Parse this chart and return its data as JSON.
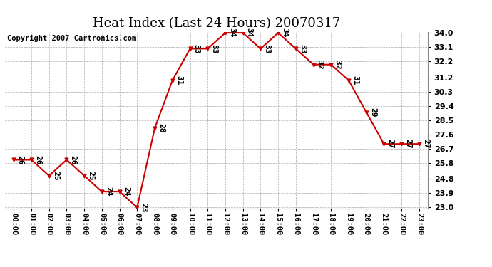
{
  "title": "Heat Index (Last 24 Hours) 20070317",
  "copyright": "Copyright 2007 Cartronics.com",
  "hours": [
    "00:00",
    "01:00",
    "02:00",
    "03:00",
    "04:00",
    "05:00",
    "06:00",
    "07:00",
    "08:00",
    "09:00",
    "10:00",
    "11:00",
    "12:00",
    "13:00",
    "14:00",
    "15:00",
    "16:00",
    "17:00",
    "18:00",
    "19:00",
    "20:00",
    "21:00",
    "22:00",
    "23:00"
  ],
  "values": [
    26,
    26,
    25,
    26,
    25,
    24,
    24,
    23,
    28,
    31,
    33,
    33,
    34,
    34,
    33,
    34,
    33,
    32,
    32,
    31,
    29,
    27,
    27,
    27
  ],
  "ylim_min": 23.0,
  "ylim_max": 34.0,
  "yticks": [
    23.0,
    23.9,
    24.8,
    25.8,
    26.7,
    27.6,
    28.5,
    29.4,
    30.3,
    31.2,
    32.2,
    33.1,
    34.0
  ],
  "line_color": "#cc0000",
  "marker_color": "#cc0000",
  "bg_color": "#ffffff",
  "grid_color": "#aaaaaa",
  "title_fontsize": 13,
  "label_fontsize": 8,
  "copyright_fontsize": 7.5
}
